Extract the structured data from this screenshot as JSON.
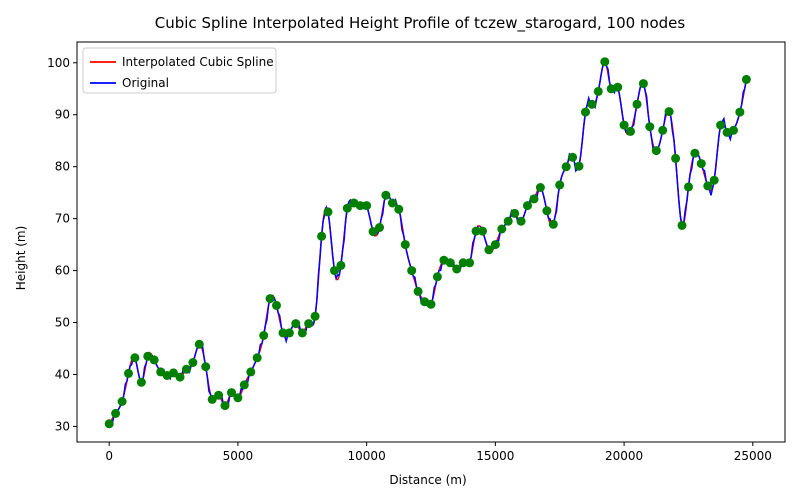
{
  "chart_data": {
    "type": "line",
    "title": "Cubic Spline Interpolated Height Profile of tczew_starogard, 100 nodes",
    "xlabel": "Distance (m)",
    "ylabel": "Height (m)",
    "xlim": [
      -1250,
      26250
    ],
    "ylim": [
      27,
      104
    ],
    "xticks": [
      0,
      5000,
      10000,
      15000,
      20000,
      25000
    ],
    "yticks": [
      30,
      40,
      50,
      60,
      70,
      80,
      90,
      100
    ],
    "grid": false,
    "legend_position": "top-left",
    "series": [
      {
        "name": "Interpolated Cubic Spline",
        "color": "#ff0000",
        "style": "line"
      },
      {
        "name": "Original",
        "color": "#0000ff",
        "style": "line"
      }
    ],
    "node_color": "#008000",
    "nodes": {
      "x": [
        0,
        250,
        500,
        750,
        1000,
        1250,
        1500,
        1750,
        2000,
        2250,
        2500,
        2750,
        3000,
        3250,
        3500,
        3750,
        4000,
        4250,
        4500,
        4750,
        5000,
        5250,
        5500,
        5750,
        6000,
        6250,
        6500,
        6750,
        7000,
        7250,
        7500,
        7750,
        8000,
        8250,
        8500,
        8750,
        9000,
        9250,
        9500,
        9750,
        10000,
        10250,
        10500,
        10750,
        11000,
        11250,
        11500,
        11750,
        12000,
        12250,
        12500,
        12750,
        13000,
        13250,
        13500,
        13750,
        14000,
        14250,
        14500,
        14750,
        15000,
        15250,
        15500,
        15750,
        16000,
        16250,
        16500,
        16750,
        17000,
        17250,
        17500,
        17750,
        18000,
        18250,
        18500,
        18750,
        19000,
        19250,
        19500,
        19750,
        20000,
        20250,
        20500,
        20750,
        21000,
        21250,
        21500,
        21750,
        22000,
        22250,
        22500,
        22750,
        23000,
        23250,
        23500,
        23750,
        24000,
        24250,
        24500,
        24750
      ],
      "y": [
        30.5,
        32.5,
        34.8,
        40.2,
        43.2,
        38.5,
        43.5,
        42.8,
        40.5,
        39.8,
        40.3,
        39.5,
        41.0,
        42.3,
        45.8,
        41.5,
        35.2,
        36.0,
        34.0,
        36.5,
        35.5,
        38.0,
        40.5,
        43.2,
        47.5,
        54.6,
        53.3,
        48.0,
        48.0,
        49.8,
        48.0,
        49.8,
        51.2,
        66.6,
        71.3,
        60.0,
        61.0,
        72.0,
        73.0,
        72.5,
        72.5,
        67.5,
        68.3,
        74.5,
        73.0,
        71.8,
        65.0,
        60.0,
        56.0,
        54.0,
        53.5,
        58.8,
        62.0,
        61.5,
        60.3,
        61.5,
        61.5,
        67.6,
        67.6,
        64.0,
        65.0,
        68.0,
        69.5,
        71.0,
        69.5,
        72.5,
        73.8,
        76.0,
        71.5,
        68.9,
        76.5,
        80.0,
        81.8,
        80.1,
        90.5,
        92.0,
        94.5,
        100.2,
        95.0,
        95.3,
        88.0,
        86.8,
        92.0,
        96.0,
        87.7,
        83.1,
        87.0,
        90.6,
        81.6,
        68.7,
        76.1,
        82.6,
        80.6,
        76.3,
        77.4,
        88.0,
        86.6,
        87.0,
        90.5,
        96.8
      ]
    }
  }
}
